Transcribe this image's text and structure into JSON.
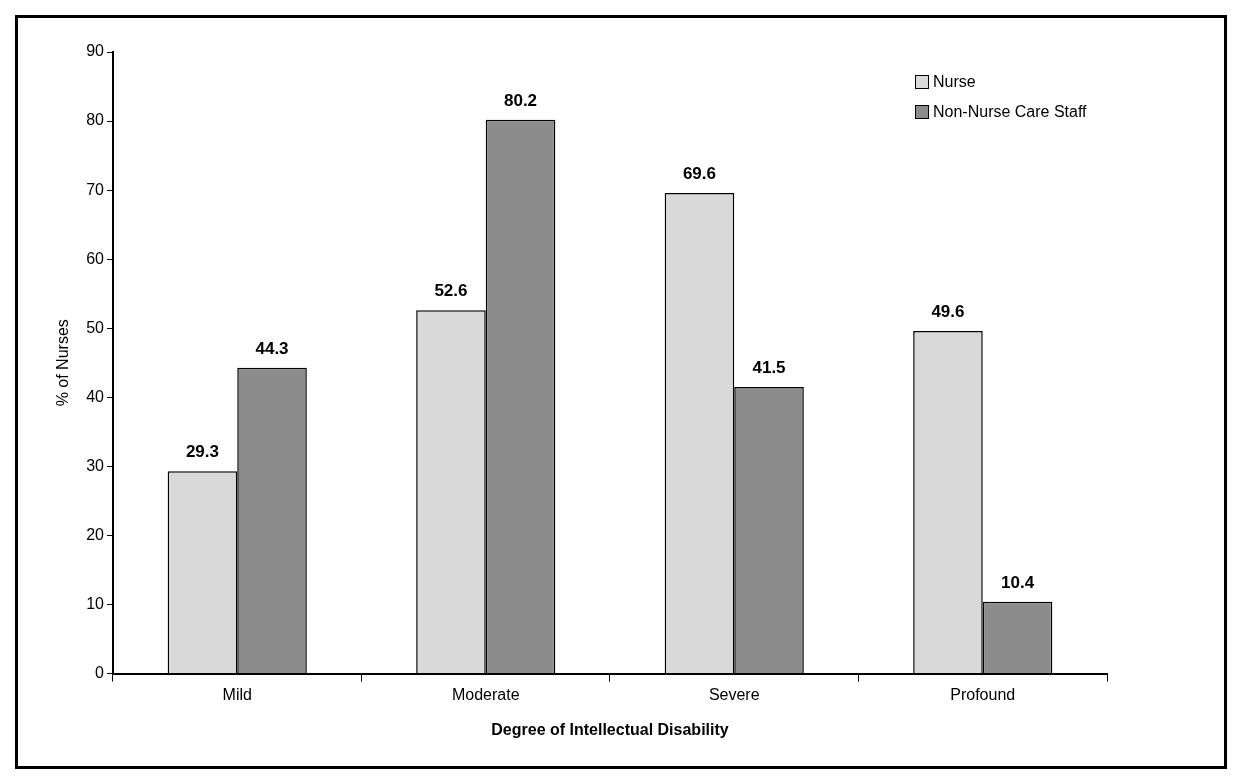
{
  "chart_data": {
    "type": "bar",
    "xlabel": "Degree of Intellectual Disability",
    "ylabel": "% of Nurses",
    "categories": [
      "Mild",
      "Moderate",
      "Severe",
      "Profound"
    ],
    "series": [
      {
        "name": "Nurse",
        "color": "#d9d9d9",
        "values": [
          29.3,
          52.6,
          69.6,
          49.6
        ]
      },
      {
        "name": "Non-Nurse Care Staff",
        "color": "#8c8c8c",
        "values": [
          44.3,
          80.2,
          41.5,
          10.4
        ]
      }
    ],
    "ylim": [
      0,
      90
    ],
    "yticks": [
      0,
      10,
      20,
      30,
      40,
      50,
      60,
      70,
      80,
      90
    ],
    "grid": false,
    "legend": "top right",
    "data_labels": true
  }
}
